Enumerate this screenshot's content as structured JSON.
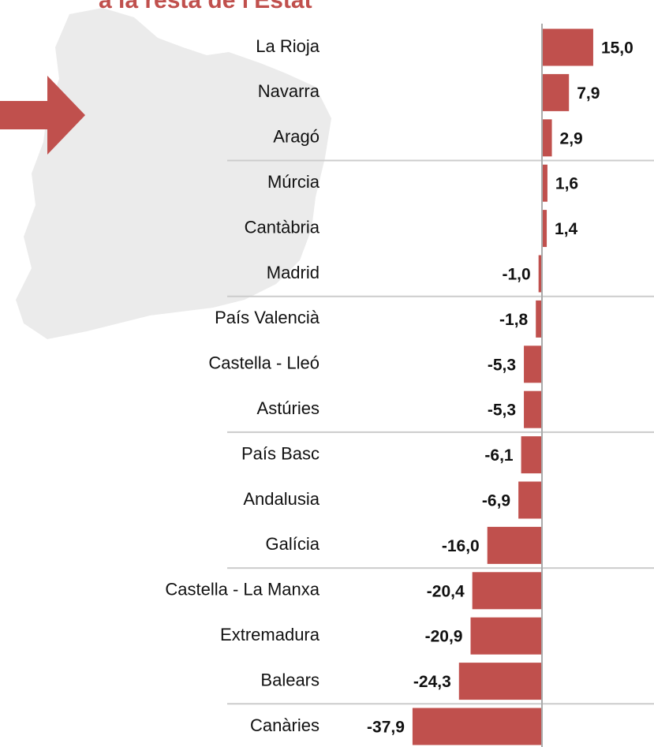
{
  "chart_data": {
    "type": "bar",
    "orientation": "horizontal",
    "title": "a la resta de l'Estat",
    "categories": [
      "La Rioja",
      "Navarra",
      "Aragó",
      "Múrcia",
      "Cantàbria",
      "Madrid",
      "País Valencià",
      "Castella - Lleó",
      "Astúries",
      "País Basc",
      "Andalusia",
      "Galícia",
      "Castella - La Manxa",
      "Extremadura",
      "Balears",
      "Canàries"
    ],
    "values": [
      15.0,
      7.9,
      2.9,
      1.6,
      1.4,
      -1.0,
      -1.8,
      -5.3,
      -5.3,
      -6.1,
      -6.9,
      -16.0,
      -20.4,
      -20.9,
      -24.3,
      -37.9
    ],
    "value_labels": [
      "15,0",
      "7,9",
      "2,9",
      "1,6",
      "1,4",
      "-1,0",
      "-1,8",
      "-5,3",
      "-5,3",
      "-6,1",
      "-6,9",
      "-16,0",
      "-20,4",
      "-20,9",
      "-24,3",
      "-37,9"
    ],
    "color": "#c0504d"
  }
}
